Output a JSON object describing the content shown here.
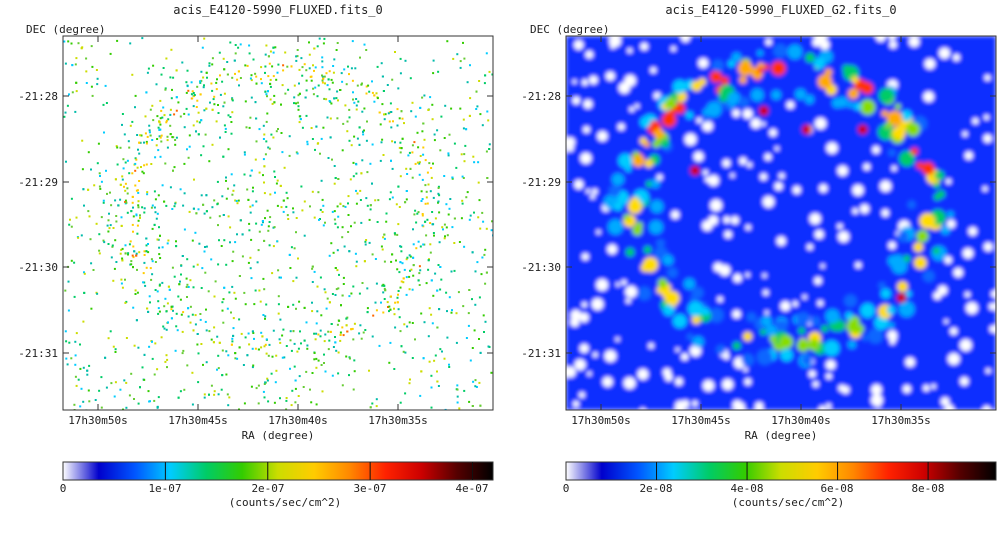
{
  "chart_data": [
    {
      "type": "heatmap",
      "title": "acis_E4120-5990_FLUXED.fits_0",
      "xlabel": "RA (degree)",
      "ylabel": "DEC (degree)",
      "x_ticks": [
        "17h30m50s",
        "17h30m45s",
        "17h30m40s",
        "17h30m35s"
      ],
      "y_ticks": [
        "-21:28",
        "-21:29",
        "-21:30",
        "-21:31"
      ],
      "colorbar": {
        "label": "(counts/sec/cm^2)",
        "ticks": [
          "0",
          "1e-07",
          "2e-07",
          "3e-07",
          "4e-07"
        ],
        "tick_values": [
          0,
          1e-07,
          2e-07,
          3e-07,
          4e-07
        ],
        "vmin": 0,
        "vmax": 4.2e-07
      },
      "rendering": "sparse",
      "grid": false
    },
    {
      "type": "heatmap",
      "title": "acis_E4120-5990_FLUXED_G2.fits_0",
      "xlabel": "RA (degree)",
      "ylabel": "DEC (degree)",
      "x_ticks": [
        "17h30m50s",
        "17h30m45s",
        "17h30m40s",
        "17h30m35s"
      ],
      "y_ticks": [
        "-21:28",
        "-21:29",
        "-21:30",
        "-21:31"
      ],
      "colorbar": {
        "label": "(counts/sec/cm^2)",
        "ticks": [
          "0",
          "2e-08",
          "4e-08",
          "6e-08",
          "8e-08"
        ],
        "tick_values": [
          0,
          2e-08,
          4e-08,
          6e-08,
          8e-08
        ],
        "vmin": 0,
        "vmax": 9.5e-08
      },
      "rendering": "smoothed",
      "grid": false
    }
  ],
  "colormap": [
    "#ffffff",
    "#0000cc",
    "#0055ff",
    "#00ccff",
    "#00cc66",
    "#33cc00",
    "#ccdd00",
    "#ffcc00",
    "#ff8800",
    "#ff2200",
    "#cc0000",
    "#550000",
    "#000000"
  ]
}
